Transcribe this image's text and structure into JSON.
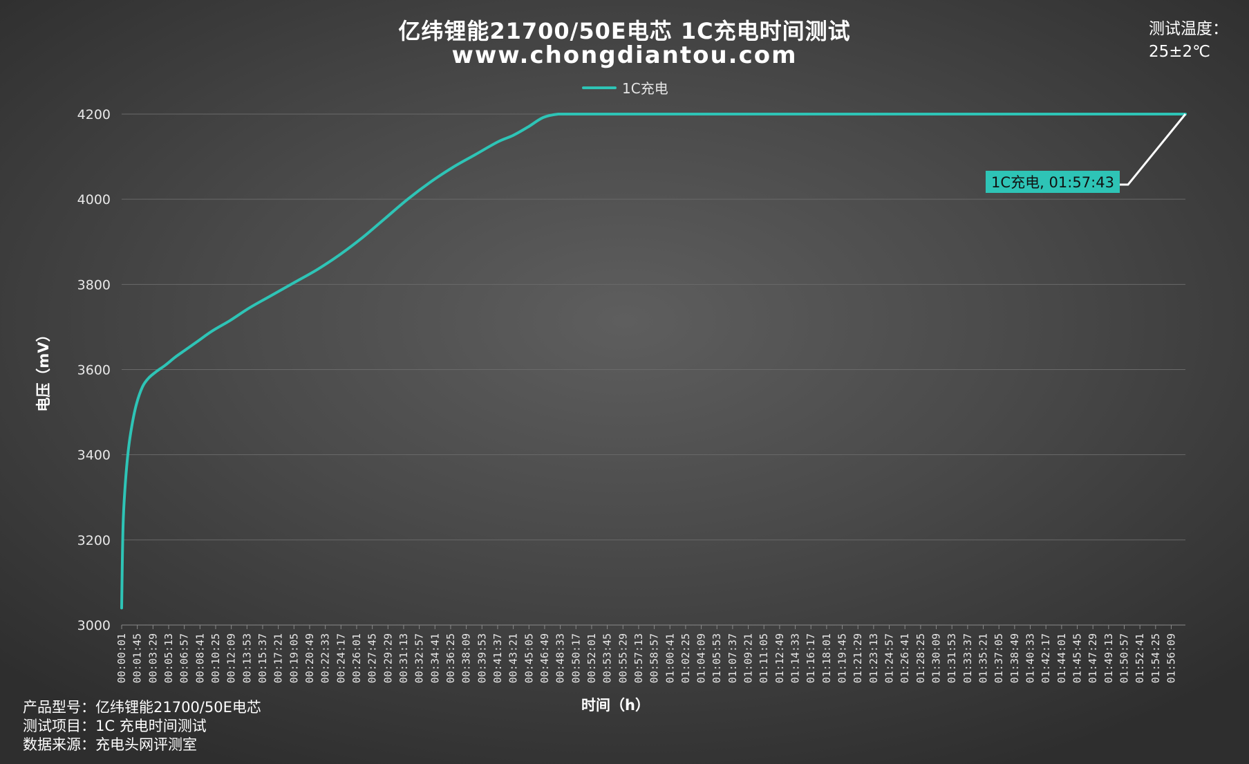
{
  "title_line1": "亿纬锂能21700/50E电芯 1C充电时间测试",
  "title_line2": "www.chongdiantou.com",
  "temperature": {
    "label": "测试温度：",
    "value": "25±2℃"
  },
  "footer": {
    "model": "产品型号：亿纬锂能21700/50E电芯",
    "item": "测试项目：1C 充电时间测试",
    "source": "数据来源：充电头网评测室"
  },
  "colors": {
    "series": "#2ec4b6",
    "annotation_line": "#ffffff",
    "grid": "#6a6a6a"
  },
  "chart_data": {
    "type": "line",
    "xlabel": "时间（h）",
    "ylabel": "电压（mV）",
    "ylim": [
      3000,
      4200
    ],
    "yticks": [
      3000,
      3200,
      3400,
      3600,
      3800,
      4000,
      4200
    ],
    "xtick_labels": [
      "00:00:01",
      "00:01:45",
      "00:03:29",
      "00:05:13",
      "00:06:57",
      "00:08:41",
      "00:10:25",
      "00:12:09",
      "00:13:53",
      "00:15:37",
      "00:17:21",
      "00:19:05",
      "00:20:49",
      "00:22:33",
      "00:24:17",
      "00:26:01",
      "00:27:45",
      "00:29:29",
      "00:31:13",
      "00:32:57",
      "00:34:41",
      "00:36:25",
      "00:38:09",
      "00:39:53",
      "00:41:37",
      "00:43:21",
      "00:45:05",
      "00:46:49",
      "00:48:33",
      "00:50:17",
      "00:52:01",
      "00:53:45",
      "00:55:29",
      "00:57:13",
      "00:58:57",
      "01:00:41",
      "01:02:25",
      "01:04:09",
      "01:05:53",
      "01:07:37",
      "01:09:21",
      "01:11:05",
      "01:12:49",
      "01:14:33",
      "01:16:17",
      "01:18:01",
      "01:19:45",
      "01:21:29",
      "01:23:13",
      "01:24:57",
      "01:26:41",
      "01:28:25",
      "01:30:09",
      "01:31:53",
      "01:33:37",
      "01:35:21",
      "01:37:05",
      "01:38:49",
      "01:40:33",
      "01:42:17",
      "01:44:01",
      "01:45:45",
      "01:47:29",
      "01:49:13",
      "01:50:57",
      "01:52:41",
      "01:54:25",
      "01:56:09"
    ],
    "xlim_seconds": [
      1,
      7063
    ],
    "grid": true,
    "legend": "top-center",
    "series": [
      {
        "name": "1C充电",
        "x_seconds": [
          1,
          10,
          25,
          45,
          70,
          100,
          140,
          180,
          230,
          290,
          360,
          420,
          500,
          600,
          720,
          850,
          1000,
          1150,
          1300,
          1450,
          1600,
          1750,
          1900,
          2050,
          2200,
          2350,
          2500,
          2600,
          2700,
          2800,
          2900,
          3000,
          3200,
          3500,
          4000,
          4500,
          5000,
          5500,
          6000,
          6500,
          7063
        ],
        "values": [
          3040,
          3230,
          3330,
          3410,
          3470,
          3520,
          3560,
          3580,
          3595,
          3610,
          3630,
          3645,
          3665,
          3690,
          3715,
          3745,
          3775,
          3805,
          3835,
          3870,
          3910,
          3955,
          4000,
          4040,
          4075,
          4105,
          4135,
          4150,
          4170,
          4192,
          4200,
          4200,
          4200,
          4200,
          4200,
          4200,
          4200,
          4200,
          4200,
          4200,
          4200
        ]
      }
    ],
    "annotation": {
      "text": "1C充电, 01:57:43",
      "x_seconds": 7063,
      "value": 4200
    }
  }
}
